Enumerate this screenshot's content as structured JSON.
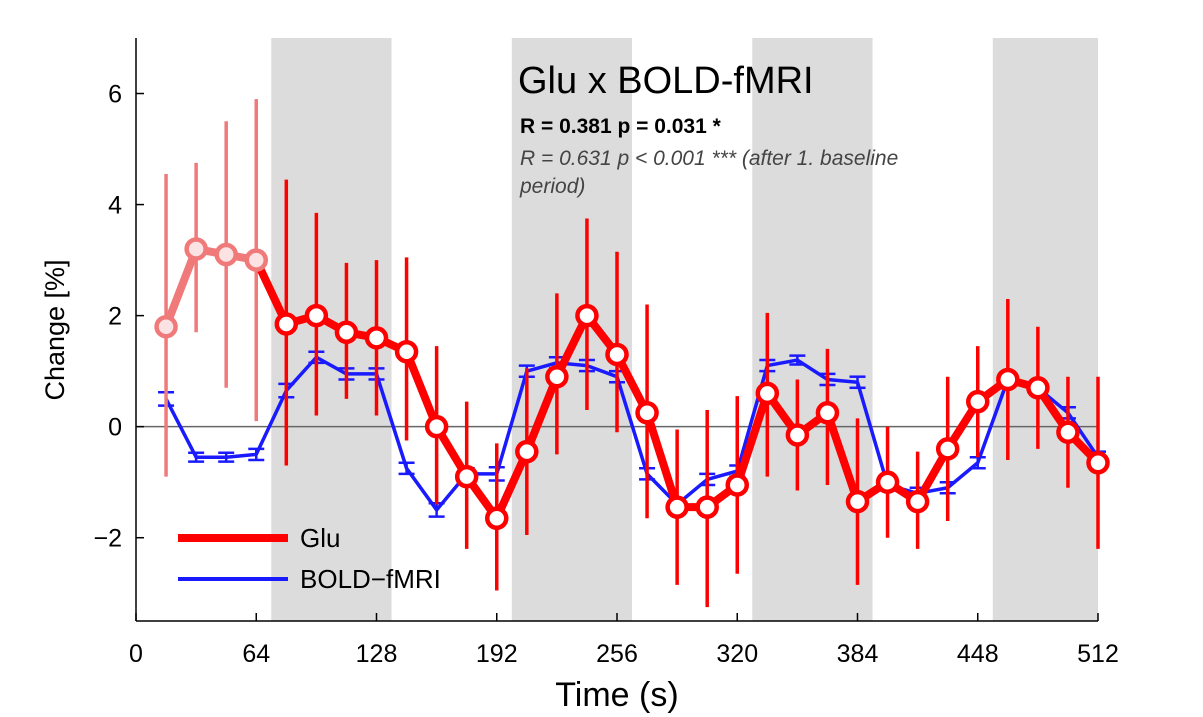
{
  "chart_data": {
    "type": "line",
    "title": "Glu x BOLD-fMRI",
    "annotations": {
      "stat_primary": "R = 0.381 p = 0.031 *",
      "stat_secondary_line1": "R = 0.631 p < 0.001 *** (after 1. baseline",
      "stat_secondary_line2": "period)"
    },
    "xlabel": "Time (s)",
    "ylabel": "Change [%]",
    "xlim": [
      0,
      512
    ],
    "ylim": [
      -3.5,
      7
    ],
    "xticks": [
      0,
      64,
      128,
      192,
      256,
      320,
      384,
      448,
      512
    ],
    "xtick_labels": [
      "0",
      "64",
      "128",
      "192",
      "256",
      "320",
      "384",
      "448",
      "512"
    ],
    "yticks": [
      -2,
      0,
      2,
      4,
      6
    ],
    "ytick_labels": [
      "−2",
      "0",
      "2",
      "4",
      "6"
    ],
    "stimulus_blocks": [
      [
        72,
        136
      ],
      [
        200,
        264
      ],
      [
        328,
        392
      ],
      [
        456,
        512
      ]
    ],
    "legend": {
      "position": "bottom-left",
      "entries": [
        "Glu",
        "BOLD−fMRI"
      ]
    },
    "colors": {
      "glu": "#ff0000",
      "glu_baseline": "#f07a7a",
      "bold": "#1a1aff",
      "block": "#dcdcdc",
      "zero_line": "#666666"
    },
    "series": [
      {
        "name": "Glu",
        "baseline_points": 4,
        "x": [
          16,
          32,
          48,
          64,
          80,
          96,
          112,
          128,
          144,
          160,
          176,
          192,
          208,
          224,
          240,
          256,
          272,
          288,
          304,
          320,
          336,
          352,
          368,
          384,
          400,
          416,
          432,
          448,
          464,
          480,
          496,
          512
        ],
        "y": [
          1.8,
          3.2,
          3.1,
          3.0,
          1.85,
          2.0,
          1.7,
          1.6,
          1.35,
          0.0,
          -0.9,
          -1.65,
          -0.45,
          0.9,
          2.0,
          1.3,
          0.25,
          -1.45,
          -1.45,
          -1.05,
          0.6,
          -0.15,
          0.25,
          -1.35,
          -1.0,
          -1.35,
          -0.4,
          0.45,
          0.85,
          0.7,
          -0.1,
          -0.65
        ],
        "err_low": [
          2.7,
          1.5,
          2.4,
          2.9,
          2.55,
          1.8,
          1.2,
          1.4,
          1.6,
          1.4,
          1.3,
          1.3,
          1.5,
          1.4,
          1.7,
          1.4,
          1.9,
          1.4,
          1.8,
          1.6,
          1.5,
          1.0,
          1.3,
          1.5,
          1.0,
          0.85,
          1.3,
          1.0,
          1.45,
          1.1,
          1.0,
          1.55
        ],
        "err_high": [
          2.75,
          1.55,
          2.4,
          2.9,
          2.6,
          1.85,
          1.25,
          1.4,
          1.7,
          1.45,
          1.35,
          1.35,
          1.5,
          1.5,
          1.75,
          1.85,
          1.95,
          1.4,
          1.75,
          1.6,
          1.45,
          1.0,
          1.15,
          1.5,
          1.0,
          0.9,
          1.3,
          1.0,
          1.45,
          1.1,
          1.0,
          1.55
        ]
      },
      {
        "name": "BOLD−fMRI",
        "x": [
          16,
          32,
          48,
          64,
          80,
          96,
          112,
          128,
          144,
          160,
          176,
          192,
          208,
          224,
          240,
          256,
          272,
          288,
          304,
          320,
          336,
          352,
          368,
          384,
          400,
          416,
          432,
          448,
          464,
          480,
          496,
          512
        ],
        "y": [
          0.5,
          -0.55,
          -0.55,
          -0.5,
          0.65,
          1.25,
          0.95,
          0.95,
          -0.75,
          -1.5,
          -0.85,
          -0.85,
          1.0,
          1.15,
          1.1,
          0.9,
          -0.85,
          -1.4,
          -0.95,
          -0.8,
          1.1,
          1.2,
          0.85,
          0.8,
          -1.05,
          -1.2,
          -1.1,
          -0.65,
          0.85,
          0.7,
          0.25,
          -0.55
        ],
        "err": [
          0.12,
          0.08,
          0.08,
          0.1,
          0.12,
          0.1,
          0.1,
          0.1,
          0.1,
          0.12,
          0.1,
          0.12,
          0.1,
          0.1,
          0.1,
          0.1,
          0.1,
          0.1,
          0.1,
          0.1,
          0.1,
          0.08,
          0.1,
          0.1,
          0.1,
          0.1,
          0.1,
          0.1,
          0.1,
          0.1,
          0.1,
          0.1
        ]
      }
    ]
  }
}
